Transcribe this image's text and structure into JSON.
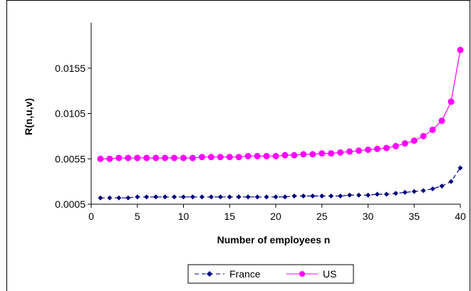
{
  "chart_data": {
    "type": "line",
    "title": "",
    "xlabel": "Number of employees  n",
    "ylabel": "R(n,u,v)",
    "xlim": [
      0,
      40
    ],
    "ylim": [
      0.0005,
      0.0205
    ],
    "x_ticks": [
      "0",
      "5",
      "10",
      "15",
      "20",
      "25",
      "30",
      "35",
      "40"
    ],
    "y_ticks": [
      "0.0005",
      "0.0055",
      "0.0105",
      "0.0155"
    ],
    "grid": false,
    "legend_position": "bottom",
    "x": [
      1,
      2,
      3,
      4,
      5,
      6,
      7,
      8,
      9,
      10,
      11,
      12,
      13,
      14,
      15,
      16,
      17,
      18,
      19,
      20,
      21,
      22,
      23,
      24,
      25,
      26,
      27,
      28,
      29,
      30,
      31,
      32,
      33,
      34,
      35,
      36,
      37,
      38,
      39,
      40
    ],
    "series": [
      {
        "name": "France",
        "color": "#000080",
        "marker": "diamond",
        "line_style": "dashed",
        "values": [
          0.0012,
          0.0012,
          0.0012,
          0.0012,
          0.0013,
          0.0013,
          0.0013,
          0.0013,
          0.0013,
          0.0013,
          0.0013,
          0.0013,
          0.0013,
          0.0013,
          0.0013,
          0.0013,
          0.0013,
          0.0013,
          0.0013,
          0.0013,
          0.0013,
          0.0014,
          0.0014,
          0.0014,
          0.0014,
          0.0014,
          0.0014,
          0.0015,
          0.0015,
          0.0015,
          0.0016,
          0.0016,
          0.0017,
          0.0018,
          0.0019,
          0.002,
          0.0022,
          0.0025,
          0.003,
          0.0045
        ]
      },
      {
        "name": "US",
        "color": "#FF00FF",
        "marker": "circle",
        "line_style": "solid",
        "values": [
          0.0055,
          0.0055,
          0.0056,
          0.0056,
          0.0056,
          0.0056,
          0.0056,
          0.0056,
          0.0056,
          0.0056,
          0.0056,
          0.0057,
          0.0057,
          0.0057,
          0.0057,
          0.0057,
          0.0058,
          0.0058,
          0.0058,
          0.0058,
          0.0059,
          0.0059,
          0.006,
          0.006,
          0.0061,
          0.0061,
          0.0062,
          0.0063,
          0.0064,
          0.0065,
          0.0066,
          0.0067,
          0.0069,
          0.0072,
          0.0075,
          0.008,
          0.0087,
          0.0097,
          0.0118,
          0.0175
        ]
      }
    ]
  }
}
